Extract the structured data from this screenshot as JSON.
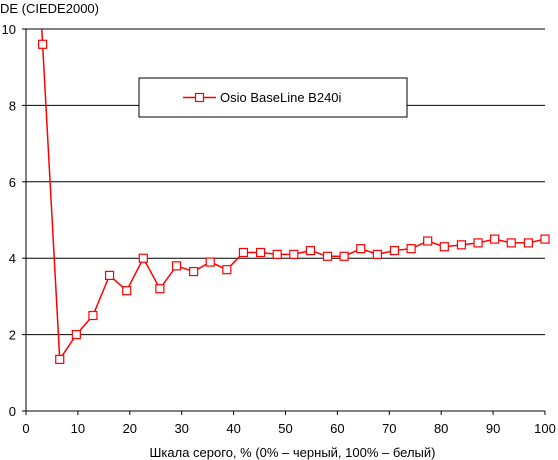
{
  "chart_data": {
    "type": "line",
    "ylabel": "DE (CIEDE2000)",
    "xlabel": "Шкала серого, % (0% – черный, 100% – белый)",
    "xlim": [
      0,
      100
    ],
    "ylim": [
      0,
      10
    ],
    "x_ticks": [
      "0",
      "10",
      "20",
      "30",
      "40",
      "50",
      "60",
      "70",
      "80",
      "90",
      "100"
    ],
    "y_ticks": [
      "0",
      "2",
      "4",
      "6",
      "8",
      "10"
    ],
    "grid": "horizontal",
    "legend_position": "top-center",
    "series": [
      {
        "name": "Osio BaseLine B240i",
        "color": "#ff0000",
        "marker": "square-open",
        "x": [
          3.2,
          6.5,
          9.7,
          12.9,
          16.1,
          19.4,
          22.6,
          25.8,
          29.0,
          32.3,
          35.5,
          38.7,
          41.9,
          45.2,
          48.4,
          51.6,
          54.8,
          58.1,
          61.3,
          64.5,
          67.7,
          71.0,
          74.2,
          77.4,
          80.6,
          83.9,
          87.1,
          90.3,
          93.5,
          96.8,
          100.0
        ],
        "y": [
          9.6,
          1.35,
          2.0,
          2.5,
          3.55,
          3.15,
          4.0,
          3.2,
          3.8,
          3.65,
          3.9,
          3.7,
          4.15,
          4.15,
          4.1,
          4.1,
          4.2,
          4.05,
          4.05,
          4.25,
          4.1,
          4.2,
          4.25,
          4.45,
          4.3,
          4.35,
          4.4,
          4.5,
          4.4,
          4.4,
          4.5
        ]
      }
    ]
  }
}
